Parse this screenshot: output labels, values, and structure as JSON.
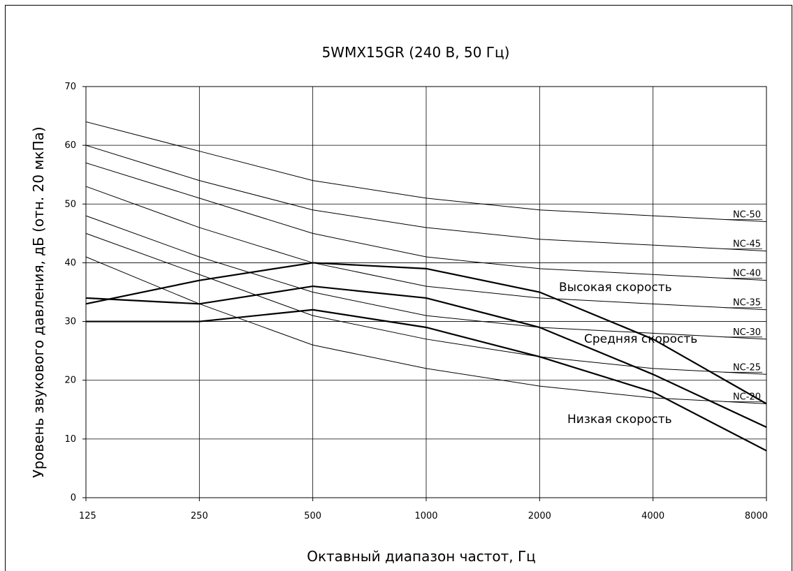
{
  "chart_data": {
    "type": "line",
    "title": "5WMX15GR (240 В, 50 Гц)",
    "xlabel": "Октавный диапазон частот, Гц",
    "ylabel": "Уровень звукового давления, дБ (отн. 20 мкПа)",
    "x": [
      "125",
      "250",
      "500",
      "1000",
      "2000",
      "4000",
      "8000"
    ],
    "ylim": [
      0,
      70
    ],
    "yticks": [
      "0",
      "10",
      "20",
      "30",
      "40",
      "50",
      "60",
      "70"
    ],
    "grid": true,
    "nc_curves": [
      {
        "name": "NC-50",
        "values": [
          64,
          59,
          54,
          51,
          49,
          48,
          47
        ]
      },
      {
        "name": "NC-45",
        "values": [
          60,
          54,
          49,
          46,
          44,
          43,
          42
        ]
      },
      {
        "name": "NC-40",
        "values": [
          57,
          51,
          45,
          41,
          39,
          38,
          37
        ]
      },
      {
        "name": "NC-35",
        "values": [
          53,
          46,
          40,
          36,
          34,
          33,
          32
        ]
      },
      {
        "name": "NC-30",
        "values": [
          48,
          41,
          35,
          31,
          29,
          28,
          27
        ]
      },
      {
        "name": "NC-25",
        "values": [
          45,
          38,
          31,
          27,
          24,
          22,
          21
        ]
      },
      {
        "name": "NC-20",
        "values": [
          41,
          33,
          26,
          22,
          19,
          17,
          16
        ]
      }
    ],
    "series": [
      {
        "name": "Высокая скорость",
        "values": [
          33,
          37,
          40,
          39,
          35,
          27,
          16
        ]
      },
      {
        "name": "Средняя скорость",
        "values": [
          34,
          33,
          36,
          34,
          29,
          21,
          12
        ]
      },
      {
        "name": "Низкая скорость",
        "values": [
          30,
          30,
          32,
          29,
          24,
          18,
          8
        ]
      }
    ]
  }
}
